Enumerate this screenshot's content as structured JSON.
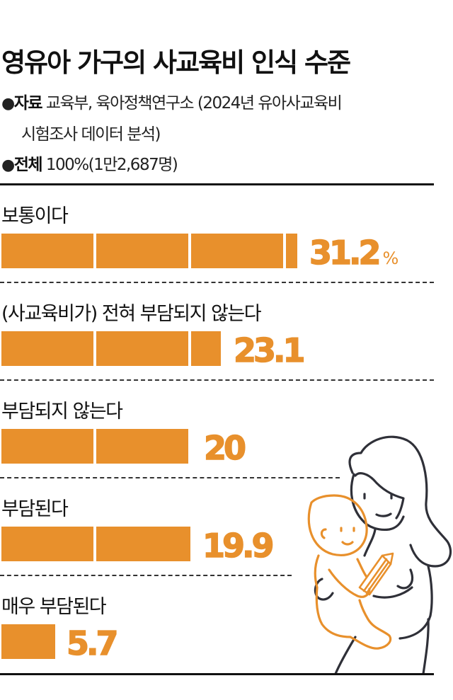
{
  "title": "영유아 가구의 사교육비 인식 수준",
  "meta": {
    "source_label": "자료",
    "source_text_line1": "교육부, 육아정책연구소 (2024년 유아사교육비",
    "source_text_line2": "시험조사 데이터 분석)",
    "total_label": "전체",
    "total_text": "100%(1만2,687명)",
    "bullet": "●"
  },
  "colors": {
    "bar": "#e8902c",
    "text": "#111111",
    "rule": "#111111"
  },
  "rows": [
    {
      "label": "보통이다",
      "value_text": "31.2",
      "unit": "%"
    },
    {
      "label": "(사교육비가) 전혀 부담되지 않는다",
      "value_text": "23.1"
    },
    {
      "label": "부담되지 않는다",
      "value_text": "20"
    },
    {
      "label": "부담된다",
      "value_text": "19.9"
    },
    {
      "label": "매우 부담된다",
      "value_text": "5.7"
    }
  ],
  "chart_data": {
    "type": "bar",
    "orientation": "horizontal",
    "title": "영유아 가구의 사교육비 인식 수준",
    "subtitle": "자료 교육부, 육아정책연구소 (2024년 유아사교육비 시험조사 데이터 분석) / 전체 100%(1만2,687명)",
    "categories": [
      "보통이다",
      "(사교육비가) 전혀 부담되지 않는다",
      "부담되지 않는다",
      "부담된다",
      "매우 부담된다"
    ],
    "values": [
      31.2,
      23.1,
      20,
      19.9,
      5.7
    ],
    "unit": "%",
    "xlabel": "",
    "ylabel": "",
    "xlim": [
      0,
      40
    ],
    "grid": false,
    "legend": "none",
    "bar_segment_step": 10,
    "color": "#e8902c"
  }
}
